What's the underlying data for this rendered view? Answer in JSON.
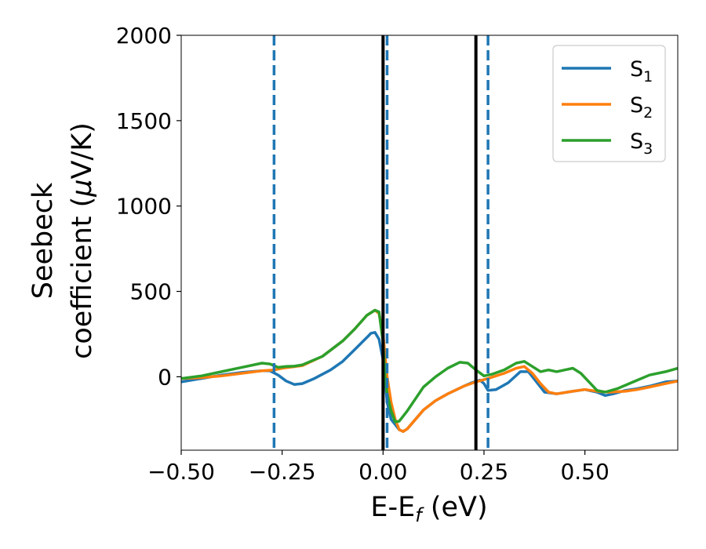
{
  "chart_data": {
    "type": "line",
    "xlabel": {
      "main": "E-E",
      "sub": "f",
      "tail": " (eV)"
    },
    "ylabel": {
      "line1": "Seebeck",
      "line2": "coefficient  (",
      "mu": "μ",
      "unit": "V/K)"
    },
    "xlim": [
      -0.5,
      0.73
    ],
    "ylim": [
      -430,
      2000
    ],
    "x_ticks": [
      -0.5,
      -0.25,
      0.0,
      0.25,
      0.5
    ],
    "x_tick_labels": [
      "−0.50",
      "−0.25",
      "0.00",
      "0.25",
      "0.50"
    ],
    "y_ticks": [
      0,
      500,
      1000,
      1500,
      2000
    ],
    "y_tick_labels": [
      "0",
      "500",
      "1000",
      "1500",
      "2000"
    ],
    "grid": false,
    "legend_position": "top-right",
    "vertical_lines": [
      {
        "x": 0.0,
        "style": "solid",
        "color": "#000000"
      },
      {
        "x": 0.23,
        "style": "solid",
        "color": "#000000"
      },
      {
        "x": -0.27,
        "style": "dashed",
        "color": "#1f77b4"
      },
      {
        "x": 0.01,
        "style": "dashed",
        "color": "#1f77b4"
      },
      {
        "x": 0.26,
        "style": "dashed",
        "color": "#1f77b4"
      }
    ],
    "series": [
      {
        "name": "S",
        "sub": "1",
        "color": "#1f77b4",
        "points": [
          [
            -0.5,
            -30
          ],
          [
            -0.45,
            -10
          ],
          [
            -0.4,
            10
          ],
          [
            -0.35,
            25
          ],
          [
            -0.3,
            35
          ],
          [
            -0.28,
            35
          ],
          [
            -0.26,
            10
          ],
          [
            -0.24,
            -25
          ],
          [
            -0.22,
            -45
          ],
          [
            -0.2,
            -40
          ],
          [
            -0.17,
            -10
          ],
          [
            -0.13,
            40
          ],
          [
            -0.1,
            90
          ],
          [
            -0.07,
            160
          ],
          [
            -0.04,
            230
          ],
          [
            -0.03,
            255
          ],
          [
            -0.02,
            260
          ],
          [
            -0.01,
            220
          ],
          [
            0.0,
            100
          ],
          [
            0.005,
            -20
          ],
          [
            0.01,
            -150
          ],
          [
            0.02,
            -250
          ],
          [
            0.03,
            -280
          ],
          [
            0.04,
            -310
          ],
          [
            0.05,
            -320
          ],
          [
            0.06,
            -305
          ],
          [
            0.08,
            -250
          ],
          [
            0.1,
            -195
          ],
          [
            0.13,
            -140
          ],
          [
            0.16,
            -100
          ],
          [
            0.2,
            -55
          ],
          [
            0.22,
            -35
          ],
          [
            0.24,
            -20
          ],
          [
            0.25,
            -40
          ],
          [
            0.26,
            -80
          ],
          [
            0.28,
            -75
          ],
          [
            0.31,
            -35
          ],
          [
            0.34,
            30
          ],
          [
            0.36,
            30
          ],
          [
            0.38,
            -30
          ],
          [
            0.4,
            -90
          ],
          [
            0.43,
            -100
          ],
          [
            0.47,
            -85
          ],
          [
            0.5,
            -75
          ],
          [
            0.53,
            -90
          ],
          [
            0.55,
            -110
          ],
          [
            0.57,
            -100
          ],
          [
            0.6,
            -80
          ],
          [
            0.63,
            -70
          ],
          [
            0.66,
            -55
          ],
          [
            0.7,
            -30
          ],
          [
            0.73,
            -25
          ]
        ]
      },
      {
        "name": "S",
        "sub": "2",
        "color": "#ff7f0e",
        "points": [
          [
            -0.5,
            -10
          ],
          [
            -0.45,
            -5
          ],
          [
            -0.4,
            5
          ],
          [
            -0.35,
            20
          ],
          [
            -0.3,
            35
          ],
          [
            -0.27,
            40
          ],
          [
            -0.25,
            50
          ],
          [
            -0.2,
            65
          ],
          [
            -0.15,
            120
          ],
          [
            -0.1,
            210
          ],
          [
            -0.07,
            280
          ],
          [
            -0.04,
            360
          ],
          [
            -0.02,
            390
          ],
          [
            -0.01,
            370
          ],
          [
            0.0,
            250
          ],
          [
            0.01,
            0
          ],
          [
            0.02,
            -150
          ],
          [
            0.03,
            -250
          ],
          [
            0.04,
            -310
          ],
          [
            0.05,
            -320
          ],
          [
            0.06,
            -305
          ],
          [
            0.08,
            -250
          ],
          [
            0.1,
            -195
          ],
          [
            0.13,
            -140
          ],
          [
            0.16,
            -100
          ],
          [
            0.2,
            -55
          ],
          [
            0.23,
            -30
          ],
          [
            0.26,
            -10
          ],
          [
            0.3,
            20
          ],
          [
            0.33,
            50
          ],
          [
            0.35,
            60
          ],
          [
            0.37,
            20
          ],
          [
            0.39,
            -40
          ],
          [
            0.41,
            -90
          ],
          [
            0.43,
            -100
          ],
          [
            0.47,
            -85
          ],
          [
            0.5,
            -75
          ],
          [
            0.53,
            -85
          ],
          [
            0.56,
            -90
          ],
          [
            0.6,
            -85
          ],
          [
            0.63,
            -75
          ],
          [
            0.66,
            -60
          ],
          [
            0.7,
            -40
          ],
          [
            0.73,
            -25
          ]
        ]
      },
      {
        "name": "S",
        "sub": "3",
        "color": "#2ca02c",
        "points": [
          [
            -0.5,
            -10
          ],
          [
            -0.45,
            5
          ],
          [
            -0.4,
            30
          ],
          [
            -0.35,
            55
          ],
          [
            -0.3,
            80
          ],
          [
            -0.28,
            75
          ],
          [
            -0.26,
            55
          ],
          [
            -0.24,
            60
          ],
          [
            -0.22,
            62
          ],
          [
            -0.2,
            70
          ],
          [
            -0.15,
            120
          ],
          [
            -0.1,
            210
          ],
          [
            -0.07,
            280
          ],
          [
            -0.04,
            360
          ],
          [
            -0.02,
            390
          ],
          [
            -0.01,
            380
          ],
          [
            0.0,
            200
          ],
          [
            0.005,
            0
          ],
          [
            0.01,
            -100
          ],
          [
            0.02,
            -200
          ],
          [
            0.03,
            -265
          ],
          [
            0.04,
            -260
          ],
          [
            0.06,
            -200
          ],
          [
            0.08,
            -130
          ],
          [
            0.1,
            -60
          ],
          [
            0.13,
            0
          ],
          [
            0.16,
            50
          ],
          [
            0.19,
            85
          ],
          [
            0.21,
            80
          ],
          [
            0.23,
            40
          ],
          [
            0.25,
            5
          ],
          [
            0.27,
            15
          ],
          [
            0.3,
            40
          ],
          [
            0.33,
            80
          ],
          [
            0.35,
            90
          ],
          [
            0.37,
            60
          ],
          [
            0.39,
            30
          ],
          [
            0.41,
            40
          ],
          [
            0.43,
            30
          ],
          [
            0.45,
            40
          ],
          [
            0.47,
            50
          ],
          [
            0.49,
            20
          ],
          [
            0.51,
            -30
          ],
          [
            0.53,
            -80
          ],
          [
            0.55,
            -90
          ],
          [
            0.58,
            -70
          ],
          [
            0.62,
            -30
          ],
          [
            0.66,
            10
          ],
          [
            0.7,
            30
          ],
          [
            0.73,
            50
          ]
        ]
      }
    ]
  }
}
